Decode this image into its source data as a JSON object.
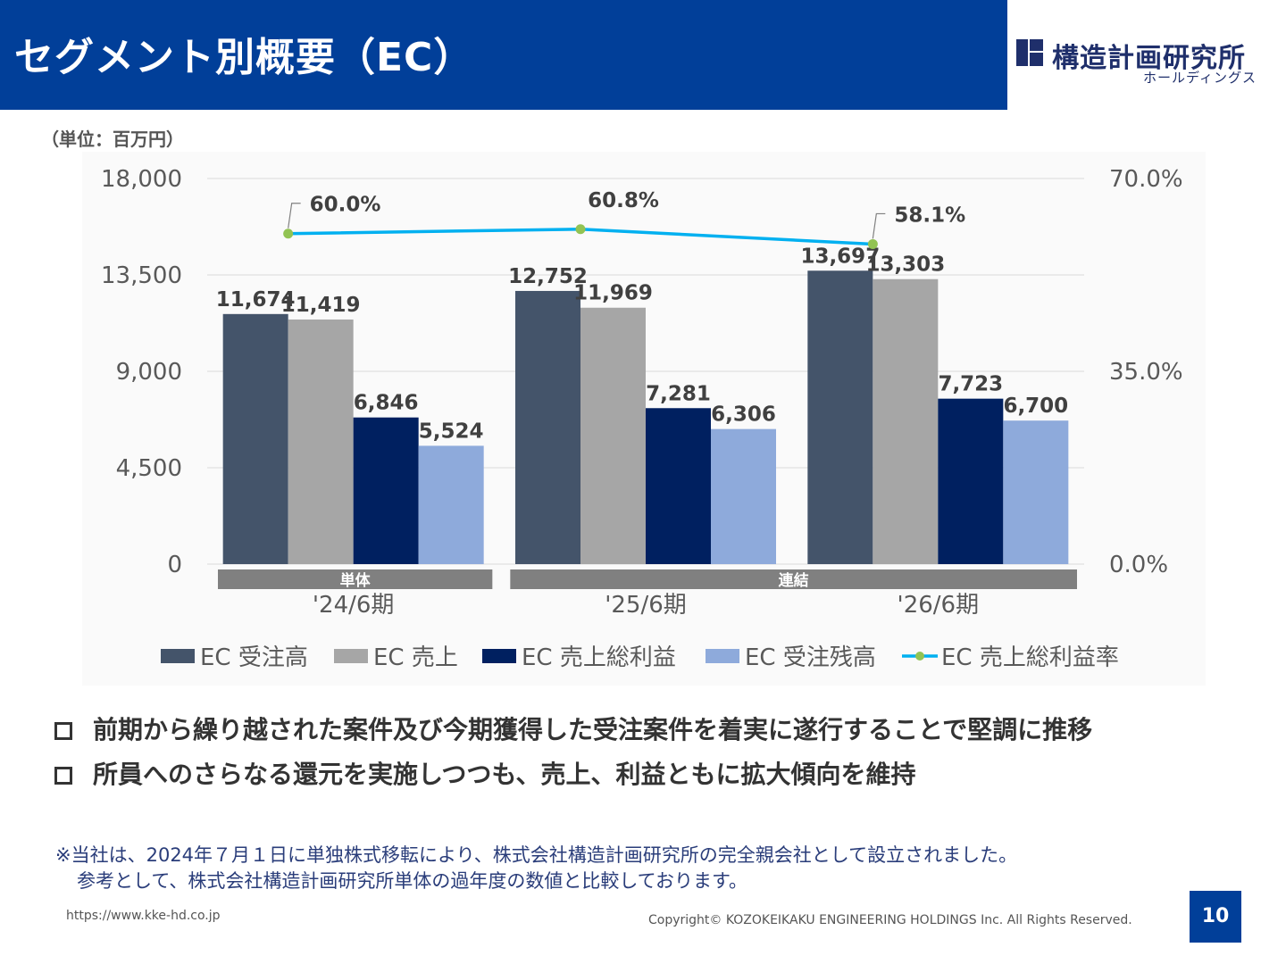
{
  "header": {
    "title": "セグメント別概要（EC）"
  },
  "logo": {
    "name": "構造計画研究所",
    "sub": "ホールディングス"
  },
  "unit_label": "（単位：百万円）",
  "colors": {
    "header_bg": "#013f99",
    "order_intake": "#44546a",
    "sales": "#a6a6a6",
    "gross_profit": "#002060",
    "order_backlog": "#8eaadb",
    "margin_line": "#00b0f0",
    "margin_marker": "#92c353",
    "group_band": "#808080"
  },
  "chart_data": {
    "type": "bar",
    "categories": [
      "'24/6期",
      "'25/6期",
      "'26/6期"
    ],
    "series": [
      {
        "name": "EC 受注高",
        "values": [
          11674,
          12752,
          13697
        ],
        "labels": [
          "11,674",
          "12,752",
          "13,697"
        ]
      },
      {
        "name": "EC 売上",
        "values": [
          11419,
          11969,
          13303
        ],
        "labels": [
          "11,419",
          "11,969",
          "13,303"
        ]
      },
      {
        "name": "EC 売上総利益",
        "values": [
          6846,
          7281,
          7723
        ],
        "labels": [
          "6,846",
          "7,281",
          "7,723"
        ]
      },
      {
        "name": "EC 受注残高",
        "values": [
          5524,
          6306,
          6700
        ],
        "labels": [
          "5,524",
          "6,306",
          "6,700"
        ]
      }
    ],
    "line_series": {
      "name": "EC 売上総利益率",
      "type": "line",
      "axis": "right",
      "values": [
        60.0,
        60.8,
        58.1
      ],
      "labels": [
        "60.0%",
        "60.8%",
        "58.1%"
      ]
    },
    "ylim": [
      0,
      18000
    ],
    "y2lim": [
      0,
      70
    ],
    "yticks": [
      "0",
      "4,500",
      "9,000",
      "13,500",
      "18,000"
    ],
    "y2ticks": [
      "0.0%",
      "35.0%",
      "70.0%"
    ],
    "groups": [
      {
        "label": "単体",
        "categories": [
          0
        ]
      },
      {
        "label": "連結",
        "categories": [
          1,
          2
        ]
      }
    ],
    "grid": true,
    "legend_position": "bottom"
  },
  "bullets": [
    "前期から繰り越された案件及び今期獲得した受注案件を着実に遂行することで堅調に推移",
    "所員へのさらなる還元を実施しつつも、売上、利益ともに拡大傾向を維持"
  ],
  "note": {
    "line1": "※当社は、2024年７月１日に単独株式移転により、株式会社構造計画研究所の完全親会社として設立されました。",
    "line2": "参考として、株式会社構造計画研究所単体の過年度の数値と比較しております。"
  },
  "footer": {
    "url": "https://www.kke-hd.co.jp",
    "copyright": "Copyright© KOZOKEIKAKU ENGINEERING HOLDINGS Inc. All Rights Reserved.",
    "page": "10"
  }
}
